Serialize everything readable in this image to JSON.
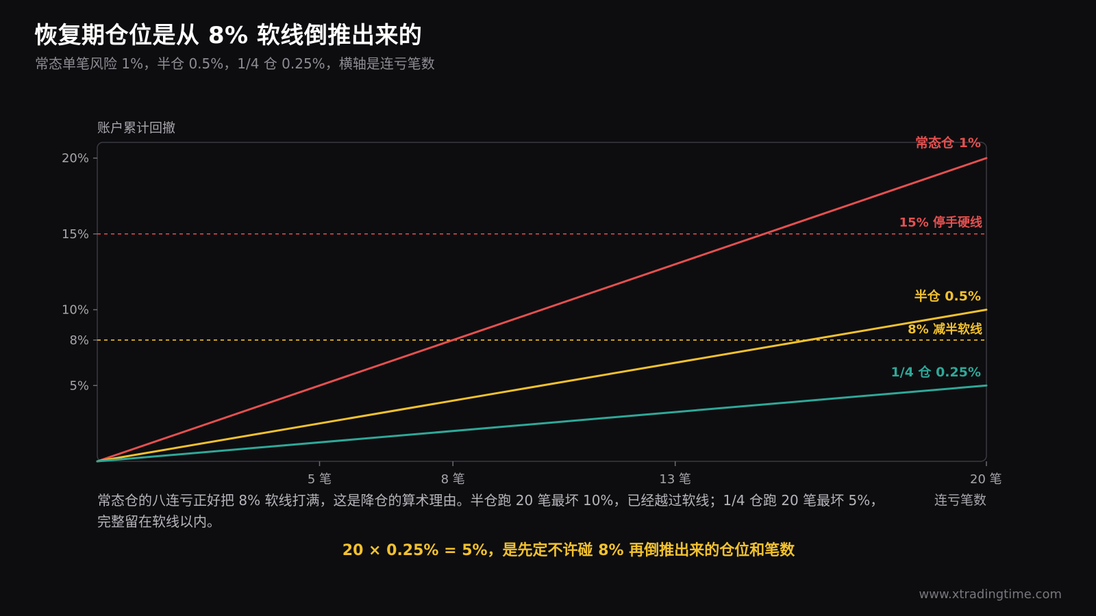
{
  "header": {
    "title": "恢复期仓位是从 8% 软线倒推出来的",
    "subtitle": "常态单笔风险 1%，半仓 0.5%，1/4 仓 0.25%，横轴是连亏笔数"
  },
  "chart_data": {
    "type": "line",
    "title": "恢复期仓位是从 8% 软线倒推出来的",
    "subtitle": "常态单笔风险 1%，半仓 0.5%，1/4 仓 0.25%，横轴是连亏笔数",
    "ylabel": "账户累计回撤",
    "xlabel": "连亏笔数",
    "xlim": [
      0,
      20
    ],
    "ylim": [
      0,
      21
    ],
    "grid": false,
    "x_ticks": [
      {
        "value": 5,
        "label": "5 笔"
      },
      {
        "value": 8,
        "label": "8 笔"
      },
      {
        "value": 13,
        "label": "13 笔"
      },
      {
        "value": 20,
        "label": "20 笔"
      }
    ],
    "y_ticks": [
      {
        "value": 5,
        "label": "5%"
      },
      {
        "value": 8,
        "label": "8%"
      },
      {
        "value": 10,
        "label": "10%"
      },
      {
        "value": 15,
        "label": "15%"
      },
      {
        "value": 20,
        "label": "20%"
      }
    ],
    "series": [
      {
        "name": "常态仓 1%",
        "color": "#e5504f",
        "x": [
          0,
          20
        ],
        "y": [
          0,
          20
        ]
      },
      {
        "name": "半仓 0.5%",
        "color": "#f2c12e",
        "x": [
          0,
          20
        ],
        "y": [
          0,
          10
        ]
      },
      {
        "name": "1/4 仓 0.25%",
        "color": "#2fa898",
        "x": [
          0,
          20
        ],
        "y": [
          0,
          5
        ]
      }
    ],
    "reference_lines": [
      {
        "y": 15,
        "label": "15% 停手硬线",
        "color": "#e5504f",
        "style": "dashed"
      },
      {
        "y": 8,
        "label": "8% 减半软线",
        "color": "#f2c12e",
        "style": "dashed"
      }
    ]
  },
  "notes": {
    "body": "常态仓的八连亏正好把 8% 软线打满，这是降仓的算术理由。半仓跑 20 笔最坏 10%，已经越过软线；1/4 仓跑 20 笔最坏 5%，完整留在软线以内。",
    "conclusion": "20 × 0.25% = 5%，是先定不许碰 8% 再倒推出来的仓位和笔数"
  },
  "footer": {
    "site": "www.xtradingtime.com"
  }
}
